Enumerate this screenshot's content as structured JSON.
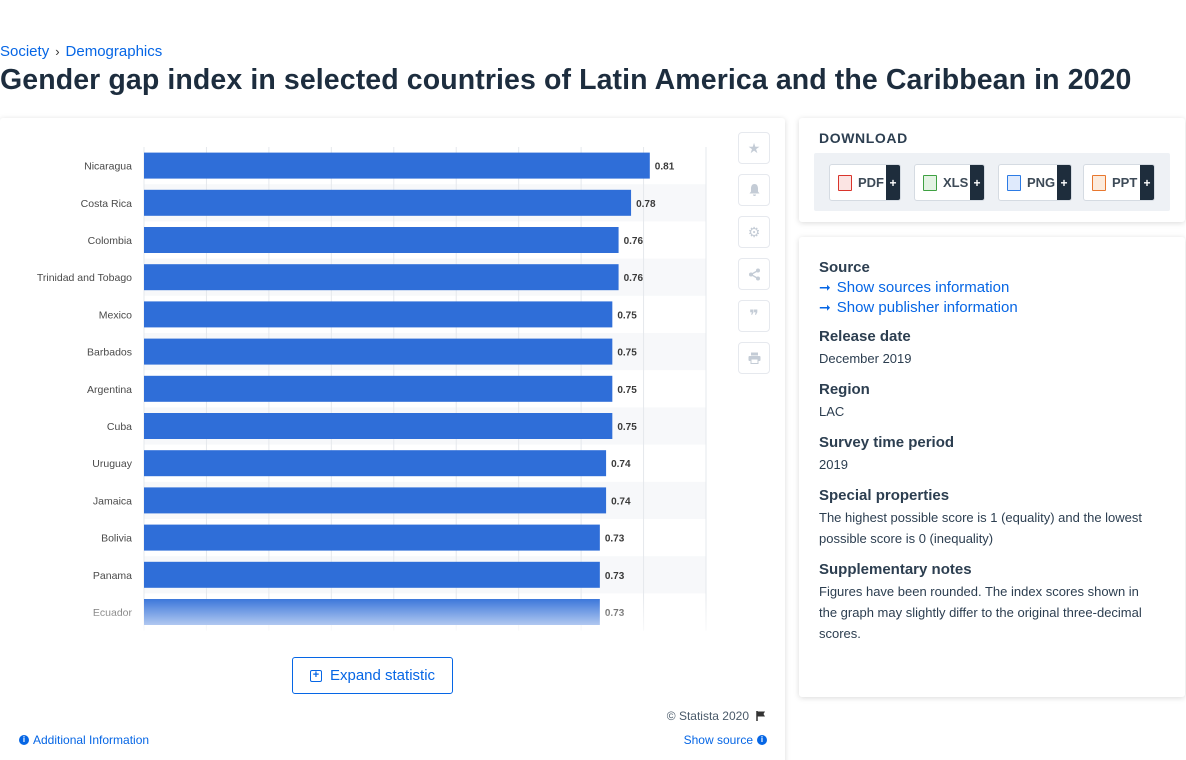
{
  "breadcrumb": {
    "items": [
      "Society",
      "Demographics"
    ]
  },
  "page_title": "Gender gap index in selected countries of Latin America and the Caribbean in 2020",
  "chart_data": {
    "type": "bar",
    "orientation": "horizontal",
    "categories": [
      "Nicaragua",
      "Costa Rica",
      "Colombia",
      "Trinidad and Tobago",
      "Mexico",
      "Barbados",
      "Argentina",
      "Cuba",
      "Uruguay",
      "Jamaica",
      "Bolivia",
      "Panama",
      "Ecuador"
    ],
    "values": [
      0.81,
      0.78,
      0.76,
      0.76,
      0.75,
      0.75,
      0.75,
      0.75,
      0.74,
      0.74,
      0.73,
      0.73,
      0.73
    ],
    "data_labels": [
      "0.81",
      "0.78",
      "0.76",
      "0.76",
      "0.75",
      "0.75",
      "0.75",
      "0.75",
      "0.74",
      "0.74",
      "0.73",
      "0.73",
      "0.73"
    ],
    "xlim": [
      0,
      0.9
    ],
    "grid": true,
    "bar_color": "#2f6ed8"
  },
  "expand_label": "Expand statistic",
  "copyright": "© Statista 2020",
  "additional_info": "Additional Information",
  "show_source": "Show source",
  "download": {
    "title": "DOWNLOAD",
    "buttons": [
      {
        "label": "PDF",
        "color": "#d9342b"
      },
      {
        "label": "XLS",
        "color": "#3fa142"
      },
      {
        "label": "PNG",
        "color": "#2c7be5"
      },
      {
        "label": "PPT",
        "color": "#e8772e"
      }
    ],
    "plus": "+"
  },
  "info": {
    "source_heading": "Source",
    "show_sources": "Show sources information",
    "show_publisher": "Show publisher information",
    "release_heading": "Release date",
    "release_value": "December 2019",
    "region_heading": "Region",
    "region_value": "LAC",
    "period_heading": "Survey time period",
    "period_value": "2019",
    "special_heading": "Special properties",
    "special_value": "The highest possible score is 1 (equality) and the lowest possible score is 0 (inequality)",
    "notes_heading": "Supplementary notes",
    "notes_value": "Figures have been rounded. The index scores shown in the graph may slightly differ to the original three-decimal scores."
  },
  "tool_icons": [
    "star-icon",
    "bell-icon",
    "gear-icon",
    "share-icon",
    "quote-icon",
    "print-icon"
  ]
}
